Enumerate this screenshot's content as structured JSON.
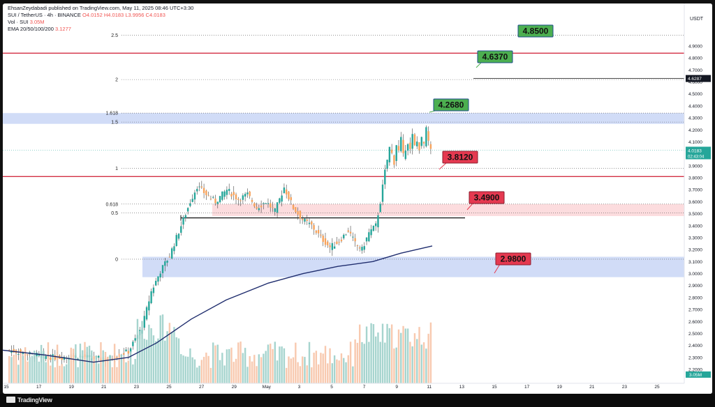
{
  "publisher_line": "EhsanZeydabadi published on TradingView.com, May 11, 2025 08:46 UTC+3:30",
  "legend": {
    "symbol": "SUI / TetherUS · 4h · BINANCE",
    "o": "O4.0152",
    "h": "H4.0183",
    "l": "L3.9956",
    "c": "C4.0183",
    "volume": "Vol · SUI",
    "volume_value": "3.05M",
    "ema": "EMA 20/50/100/200",
    "ema_value": "3.1277"
  },
  "price_axis": {
    "currency": "USDT",
    "ticks": [
      "4.9000",
      "4.8000",
      "4.7000",
      "4.6000",
      "4.5000",
      "4.4000",
      "4.3000",
      "4.2000",
      "4.1000",
      "4.0000",
      "3.9000",
      "3.8000",
      "3.7000",
      "3.6000",
      "3.5000",
      "3.4000",
      "3.3000",
      "3.2000",
      "3.1000",
      "3.0000",
      "2.9000",
      "2.8000",
      "2.7000",
      "2.6000",
      "2.5000",
      "2.4000",
      "2.3000",
      "2.2000"
    ],
    "last_price": "4.0183",
    "countdown": "02:43:04",
    "marker_price": "4.6287",
    "volume_badge": "3.05M"
  },
  "time_axis": {
    "labels": [
      "15",
      "17",
      "19",
      "21",
      "23",
      "25",
      "27",
      "29",
      "May",
      "3",
      "5",
      "7",
      "9",
      "11",
      "13",
      "15",
      "17",
      "19",
      "21",
      "23",
      "25"
    ]
  },
  "fib_labels": [
    "2.5",
    "2",
    "1.618",
    "1.5",
    "1",
    "0.618",
    "0.5",
    "0"
  ],
  "targets": [
    {
      "label": "4.8500",
      "color": "#4caf50"
    },
    {
      "label": "4.6370",
      "color": "#4caf50"
    },
    {
      "label": "4.2680",
      "color": "#4caf50"
    },
    {
      "label": "3.8120",
      "color": "#e53950"
    },
    {
      "label": "3.4900",
      "color": "#e53950"
    },
    {
      "label": "2.9800",
      "color": "#e53950"
    }
  ],
  "colors": {
    "up": "#26a69a",
    "down": "#f7a35c",
    "ema": "#1f2d6e",
    "resistance": "#d32f44",
    "zone_blue": "#c5d3f5",
    "zone_red": "#fbd3d6"
  },
  "brand": "TradingView"
}
